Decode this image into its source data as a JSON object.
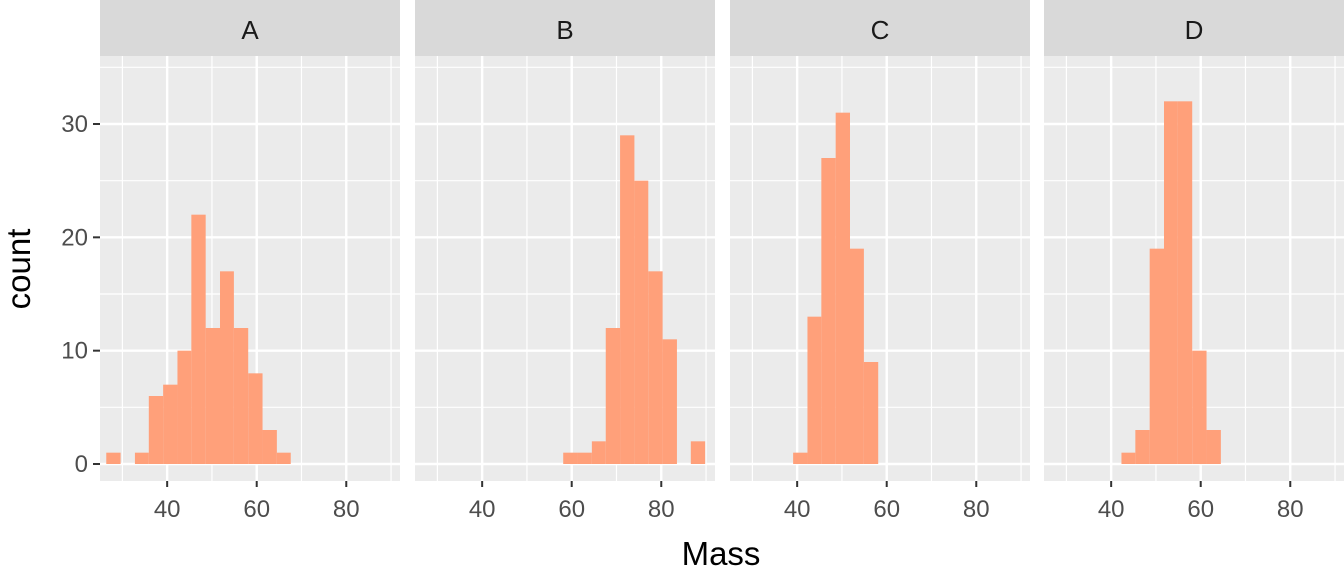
{
  "chart_data": {
    "type": "bar",
    "chart_style": "faceted histogram",
    "xlabel": "Mass",
    "ylabel": "count",
    "xlim": [
      25,
      92
    ],
    "ylim": [
      -1.5,
      36
    ],
    "x_ticks": [
      40,
      60,
      80
    ],
    "y_ticks": [
      0,
      10,
      20,
      30
    ],
    "bin_width": 3.15,
    "grid": true,
    "legend": "none",
    "bar_color": "#FFA07A",
    "panel_background": "#EBEBEB",
    "strip_background": "#D9D9D9",
    "facets": [
      {
        "label": "A",
        "bins": [
          {
            "x0": 26.4,
            "x1": 29.6,
            "count": 1
          },
          {
            "x0": 32.8,
            "x1": 35.9,
            "count": 1
          },
          {
            "x0": 35.9,
            "x1": 39.1,
            "count": 6
          },
          {
            "x0": 39.1,
            "x1": 42.3,
            "count": 7
          },
          {
            "x0": 42.3,
            "x1": 45.4,
            "count": 10
          },
          {
            "x0": 45.4,
            "x1": 48.6,
            "count": 22
          },
          {
            "x0": 48.6,
            "x1": 51.8,
            "count": 12
          },
          {
            "x0": 51.8,
            "x1": 54.9,
            "count": 17
          },
          {
            "x0": 54.9,
            "x1": 58.1,
            "count": 12
          },
          {
            "x0": 58.1,
            "x1": 61.3,
            "count": 8
          },
          {
            "x0": 61.3,
            "x1": 64.5,
            "count": 3
          },
          {
            "x0": 64.5,
            "x1": 67.6,
            "count": 1
          }
        ]
      },
      {
        "label": "B",
        "bins": [
          {
            "x0": 58.1,
            "x1": 61.3,
            "count": 1
          },
          {
            "x0": 61.3,
            "x1": 64.5,
            "count": 1
          },
          {
            "x0": 64.5,
            "x1": 67.6,
            "count": 2
          },
          {
            "x0": 67.6,
            "x1": 70.8,
            "count": 12
          },
          {
            "x0": 70.8,
            "x1": 74.0,
            "count": 29
          },
          {
            "x0": 74.0,
            "x1": 77.1,
            "count": 25
          },
          {
            "x0": 77.1,
            "x1": 80.3,
            "count": 17
          },
          {
            "x0": 80.3,
            "x1": 83.5,
            "count": 11
          },
          {
            "x0": 86.6,
            "x1": 89.8,
            "count": 2
          }
        ]
      },
      {
        "label": "C",
        "bins": [
          {
            "x0": 39.1,
            "x1": 42.3,
            "count": 1
          },
          {
            "x0": 42.3,
            "x1": 45.4,
            "count": 13
          },
          {
            "x0": 45.4,
            "x1": 48.6,
            "count": 27
          },
          {
            "x0": 48.6,
            "x1": 51.8,
            "count": 31
          },
          {
            "x0": 51.8,
            "x1": 54.9,
            "count": 19
          },
          {
            "x0": 54.9,
            "x1": 58.1,
            "count": 9
          }
        ]
      },
      {
        "label": "D",
        "bins": [
          {
            "x0": 42.3,
            "x1": 45.4,
            "count": 1
          },
          {
            "x0": 45.4,
            "x1": 48.6,
            "count": 3
          },
          {
            "x0": 48.6,
            "x1": 51.8,
            "count": 19
          },
          {
            "x0": 51.8,
            "x1": 54.9,
            "count": 32
          },
          {
            "x0": 54.9,
            "x1": 58.1,
            "count": 32
          },
          {
            "x0": 58.1,
            "x1": 61.3,
            "count": 10
          },
          {
            "x0": 61.3,
            "x1": 64.5,
            "count": 3
          }
        ]
      }
    ]
  }
}
